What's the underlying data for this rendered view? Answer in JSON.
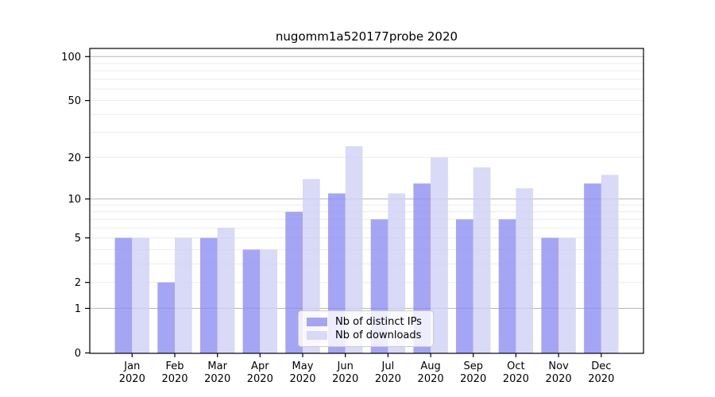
{
  "title": "nugomm1a520177probe 2020",
  "chart_data": {
    "type": "bar",
    "title": "nugomm1a520177probe 2020",
    "categories": [
      "Jan",
      "Feb",
      "Mar",
      "Apr",
      "May",
      "Jun",
      "Jul",
      "Aug",
      "Sep",
      "Oct",
      "Nov",
      "Dec"
    ],
    "year_label": "2020",
    "series": [
      {
        "name": "Nb of distinct IPs",
        "color": "#8f8ff2",
        "values": [
          5,
          2,
          5,
          4,
          8,
          11,
          7,
          13,
          7,
          7,
          5,
          13
        ]
      },
      {
        "name": "Nb of downloads",
        "color": "#d0d0f6",
        "values": [
          5,
          5,
          6,
          4,
          14,
          24,
          11,
          20,
          17,
          12,
          5,
          15
        ]
      }
    ],
    "xlabel": "",
    "ylabel": "",
    "yscale": "log10(value+1)",
    "ylim": [
      0,
      100
    ],
    "yticks": [
      0,
      1,
      2,
      5,
      10,
      20,
      50,
      100
    ],
    "major_gridlines": [
      1,
      10,
      100
    ],
    "minor_gridlines": [
      2,
      3,
      4,
      5,
      6,
      7,
      8,
      9,
      20,
      30,
      40,
      50,
      60,
      70,
      80,
      90
    ],
    "grid": "on",
    "legend_position": "lower center inside plot",
    "bar_opacity": 0.8,
    "major_grid_color": "#b5b5b5",
    "minor_grid_color": "#ececec",
    "axis_color": "#000000"
  }
}
